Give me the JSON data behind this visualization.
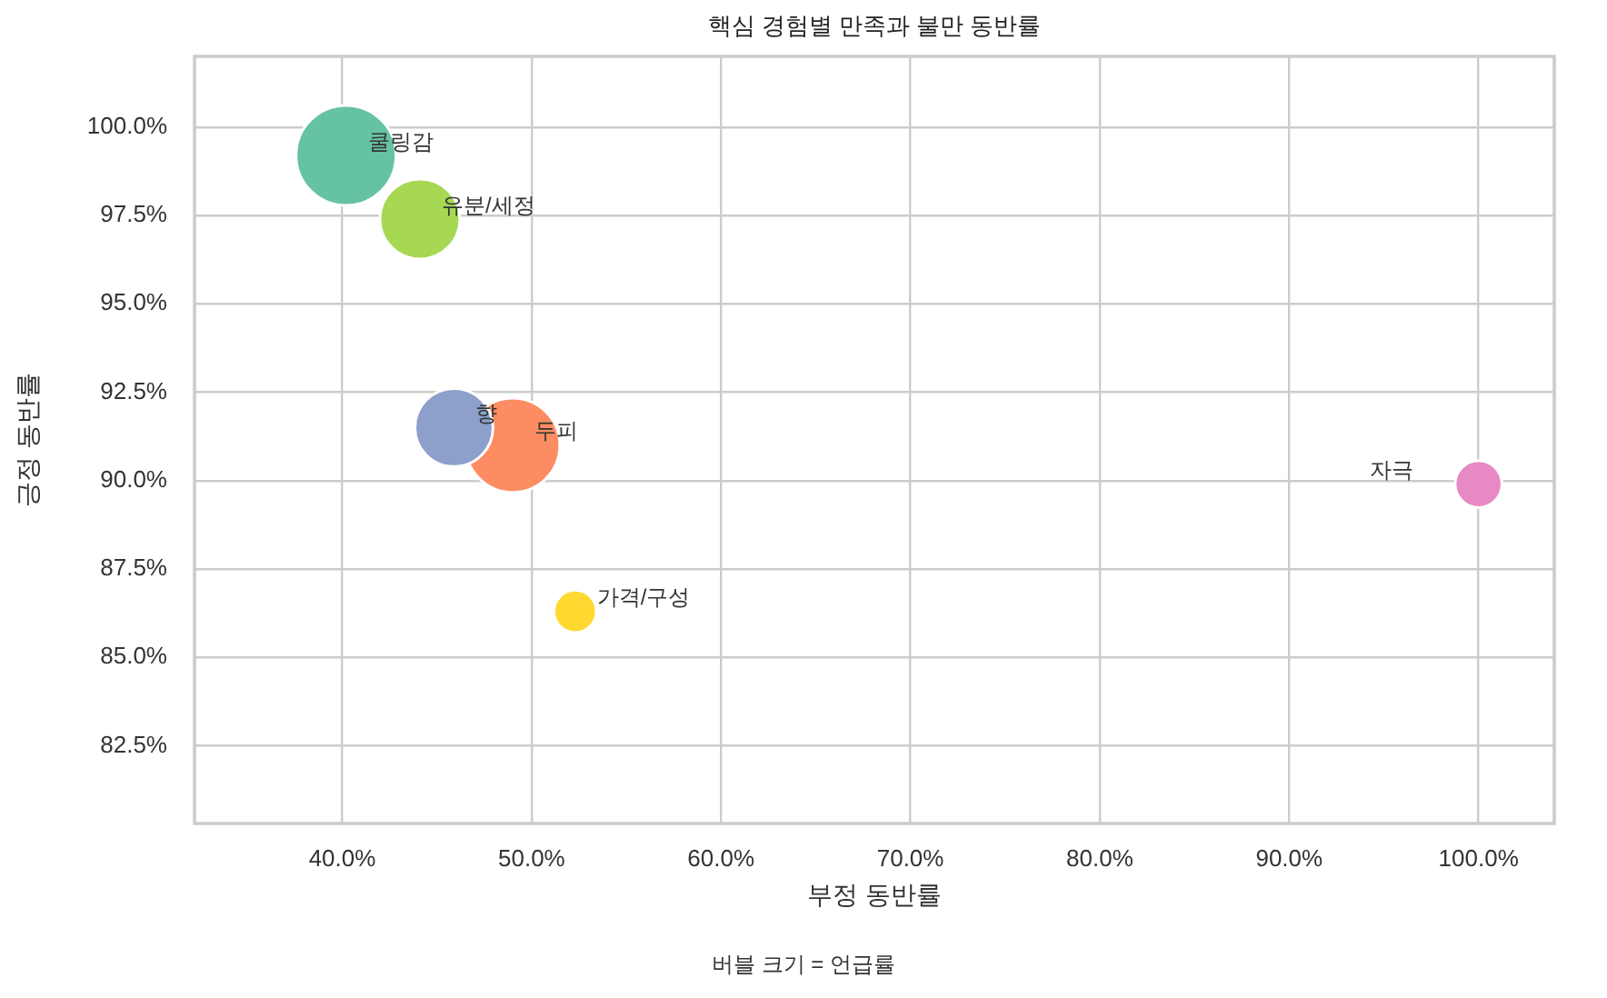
{
  "chart_data": {
    "type": "bubble",
    "title": "핵심 경험별 만족과 불만 동반률",
    "xlabel": "부정 동반률",
    "ylabel": "긍정 동반률",
    "annotations": [
      "버블 크기 = 언급률"
    ],
    "series": [
      {
        "name": "쿨링감",
        "color": "#66c2a5",
        "x": [
          40.2
        ],
        "values": [
          99.2
        ],
        "sizes": [
          1.0
        ]
      },
      {
        "name": "두피",
        "color": "#fc8d62",
        "x": [
          49.0
        ],
        "values": [
          91.0
        ],
        "sizes": [
          0.89
        ]
      },
      {
        "name": "향",
        "color": "#8da0cb",
        "x": [
          45.9
        ],
        "values": [
          91.5
        ],
        "sizes": [
          0.61
        ]
      },
      {
        "name": "자극",
        "color": "#e78ac3",
        "x": [
          100.0
        ],
        "values": [
          89.9
        ],
        "sizes": [
          0.22
        ]
      },
      {
        "name": "유분/세정",
        "color": "#a6d854",
        "x": [
          44.1
        ],
        "values": [
          97.4
        ],
        "sizes": [
          0.64
        ]
      },
      {
        "name": "가격/구성",
        "color": "#ffd92f",
        "x": [
          52.3
        ],
        "values": [
          86.3
        ],
        "sizes": [
          0.18
        ]
      }
    ],
    "xlim": [
      32.2,
      104.0
    ],
    "xticks": [
      {
        "value": 40,
        "label": "40.0%"
      },
      {
        "value": 50,
        "label": "50.0%"
      },
      {
        "value": 60,
        "label": "60.0%"
      },
      {
        "value": 70,
        "label": "70.0%"
      },
      {
        "value": 80,
        "label": "80.0%"
      },
      {
        "value": 90,
        "label": "90.0%"
      },
      {
        "value": 100,
        "label": "100.0%"
      }
    ],
    "ylim": [
      80.3,
      102.0
    ],
    "yticks": [
      {
        "value": 82.5,
        "label": "82.5%"
      },
      {
        "value": 85,
        "label": "85.0%"
      },
      {
        "value": 87.5,
        "label": "87.5%"
      },
      {
        "value": 90,
        "label": "90.0%"
      },
      {
        "value": 92.5,
        "label": "92.5%"
      },
      {
        "value": 95,
        "label": "95.0%"
      },
      {
        "value": 97.5,
        "label": "97.5%"
      },
      {
        "value": 100,
        "label": "100.0%"
      }
    ],
    "grid": true,
    "legend": false,
    "marker": "circle"
  }
}
